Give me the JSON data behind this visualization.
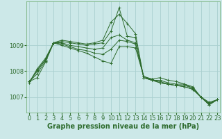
{
  "background_color": "#cce8e8",
  "grid_color": "#aad0d0",
  "line_color": "#2d6b2d",
  "xlabel": "Graphe pression niveau de la mer (hPa)",
  "xlabel_fontsize": 7,
  "tick_fontsize": 6,
  "yticks": [
    1007,
    1008,
    1009
  ],
  "xticks": [
    0,
    1,
    2,
    3,
    4,
    5,
    6,
    7,
    8,
    9,
    10,
    11,
    12,
    13,
    14,
    15,
    16,
    17,
    18,
    19,
    20,
    21,
    22,
    23
  ],
  "ylim": [
    1006.4,
    1010.7
  ],
  "xlim": [
    -0.3,
    23.3
  ],
  "series": [
    [
      1007.6,
      1007.75,
      1008.35,
      1009.1,
      1009.2,
      1009.15,
      1009.1,
      1009.05,
      1009.1,
      1009.2,
      1009.9,
      1010.2,
      1009.85,
      1009.45,
      1007.75,
      1007.7,
      1007.75,
      1007.65,
      1007.6,
      1007.5,
      1007.4,
      1007.0,
      1006.8,
      1006.9
    ],
    [
      1007.6,
      1007.9,
      1008.4,
      1009.1,
      1009.15,
      1009.1,
      1009.05,
      1009.0,
      1009.05,
      1009.1,
      1009.55,
      1010.45,
      1009.35,
      1009.3,
      1007.75,
      1007.65,
      1007.65,
      1007.55,
      1007.5,
      1007.5,
      1007.35,
      1007.0,
      1006.75,
      1006.9
    ],
    [
      1007.6,
      1008.0,
      1008.45,
      1009.1,
      1009.1,
      1009.0,
      1008.95,
      1008.9,
      1008.85,
      1008.9,
      1009.3,
      1009.4,
      1009.2,
      1009.1,
      1007.75,
      1007.65,
      1007.6,
      1007.5,
      1007.45,
      1007.4,
      1007.3,
      1007.0,
      1006.75,
      1006.9
    ],
    [
      1007.55,
      1008.05,
      1008.45,
      1009.1,
      1009.05,
      1008.95,
      1008.85,
      1008.8,
      1008.7,
      1008.65,
      1008.85,
      1009.2,
      1009.15,
      1009.05,
      1007.8,
      1007.65,
      1007.55,
      1007.5,
      1007.45,
      1007.4,
      1007.3,
      1007.0,
      1006.7,
      1006.9
    ],
    [
      1007.55,
      1008.1,
      1008.5,
      1009.1,
      1009.0,
      1008.9,
      1008.8,
      1008.7,
      1008.55,
      1008.4,
      1008.3,
      1008.95,
      1008.95,
      1008.9,
      1007.8,
      1007.7,
      1007.55,
      1007.5,
      1007.45,
      1007.45,
      1007.35,
      1007.0,
      1006.7,
      1006.9
    ]
  ]
}
